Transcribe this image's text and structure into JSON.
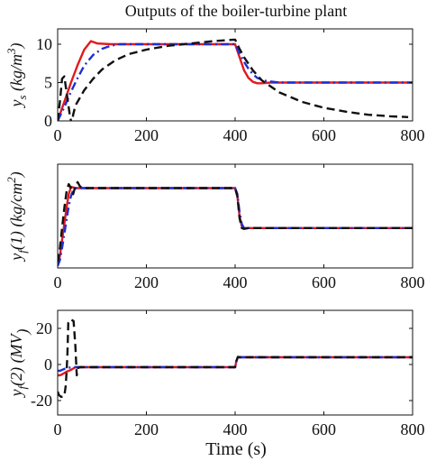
{
  "figure": {
    "title": "Outputs of the boiler-turbine plant",
    "xlabel": "Time (s)"
  },
  "chart_data": [
    {
      "type": "line",
      "ylabel": "y_s (kg/m^3)",
      "ylabel_parts": [
        "y",
        "s",
        " (",
        "kg/m",
        "3",
        ")"
      ],
      "xlim": [
        0,
        800
      ],
      "ylim": [
        0,
        12
      ],
      "xticks": [
        0,
        200,
        400,
        600,
        800
      ],
      "yticks": [
        0,
        5,
        10
      ],
      "grid": false,
      "series": [
        {
          "color": "#e3191c",
          "dash": "solid",
          "x": [
            0,
            15,
            30,
            45,
            60,
            75,
            90,
            120,
            200,
            300,
            400,
            410,
            420,
            430,
            440,
            450,
            460,
            480,
            500,
            600,
            800
          ],
          "y": [
            0,
            2.5,
            5.0,
            7.3,
            9.3,
            10.4,
            10.1,
            10.0,
            10.0,
            10.0,
            10.0,
            8.3,
            6.6,
            5.6,
            5.1,
            4.9,
            4.9,
            5.0,
            5.0,
            5.0,
            5.0
          ]
        },
        {
          "color": "#1f2fd4",
          "dash": "dashdot",
          "x": [
            0,
            15,
            30,
            45,
            60,
            80,
            100,
            120,
            140,
            200,
            300,
            400,
            410,
            420,
            430,
            440,
            450,
            470,
            500,
            600,
            800
          ],
          "y": [
            0,
            1.8,
            3.8,
            5.6,
            7.2,
            8.6,
            9.4,
            9.8,
            10.0,
            10.0,
            10.0,
            10.0,
            8.8,
            7.7,
            6.8,
            6.1,
            5.6,
            5.2,
            5.0,
            5.0,
            5.0
          ]
        },
        {
          "color": "#111111",
          "dash": "dashed",
          "x": [
            0,
            5,
            10,
            15,
            22,
            28,
            32,
            35,
            40,
            50,
            60,
            80,
            100,
            130,
            160,
            200,
            250,
            300,
            350,
            400,
            410,
            420,
            440,
            460,
            500,
            550,
            600,
            650,
            700,
            750,
            790
          ],
          "y": [
            0,
            2.5,
            5.5,
            5.8,
            3.0,
            0.5,
            -0.4,
            0.8,
            2.0,
            3.0,
            4.0,
            5.5,
            6.7,
            7.9,
            8.7,
            9.3,
            9.8,
            10.1,
            10.4,
            10.6,
            9.4,
            8.3,
            6.6,
            5.3,
            3.7,
            2.5,
            1.7,
            1.2,
            0.8,
            0.6,
            0.5
          ]
        }
      ]
    },
    {
      "type": "line",
      "ylabel": "y_f(1) (kg/cm^2)",
      "ylabel_parts": [
        "y",
        "f",
        "(1) (",
        "kg/cm",
        "2",
        ")"
      ],
      "xlim": [
        0,
        800
      ],
      "ylim": [
        0,
        2.6
      ],
      "xticks": [
        0,
        200,
        400,
        600,
        800
      ],
      "yticks": [],
      "grid": false,
      "series": [
        {
          "color": "#e3191c",
          "dash": "solid",
          "x": [
            0,
            5,
            10,
            15,
            20,
            25,
            30,
            35,
            40,
            50,
            400,
            405,
            410,
            415,
            420,
            800
          ],
          "y": [
            0.1,
            0.3,
            0.7,
            1.1,
            1.5,
            1.85,
            2.03,
            2.02,
            2.0,
            2.0,
            2.0,
            1.8,
            1.3,
            1.05,
            1.0,
            1.0
          ]
        },
        {
          "color": "#1f2fd4",
          "dash": "dashdot",
          "x": [
            0,
            5,
            10,
            15,
            20,
            25,
            30,
            35,
            40,
            45,
            50,
            400,
            405,
            410,
            415,
            420,
            800
          ],
          "y": [
            0.05,
            0.2,
            0.5,
            0.85,
            1.2,
            1.55,
            1.8,
            1.95,
            2.0,
            2.0,
            2.0,
            2.0,
            1.85,
            1.4,
            1.1,
            1.0,
            1.0
          ]
        },
        {
          "color": "#111111",
          "dash": "dashed",
          "x": [
            0,
            5,
            10,
            15,
            20,
            25,
            30,
            35,
            40,
            45,
            50,
            55,
            60,
            400,
            405,
            410,
            415,
            420,
            430,
            800
          ],
          "y": [
            0.15,
            0.5,
            1.0,
            1.5,
            1.9,
            2.1,
            2.0,
            1.85,
            2.05,
            2.15,
            2.05,
            2.0,
            2.0,
            2.0,
            1.8,
            1.25,
            1.0,
            0.98,
            1.0,
            1.0
          ]
        }
      ]
    },
    {
      "type": "line",
      "ylabel": "y_f(2) (MV)",
      "ylabel_parts": [
        "y",
        "f",
        "(2) (",
        "MV",
        "",
        ")"
      ],
      "xlim": [
        0,
        800
      ],
      "ylim": [
        -28,
        30
      ],
      "xticks": [
        0,
        200,
        400,
        600,
        800
      ],
      "yticks": [
        -20,
        0,
        20
      ],
      "grid": false,
      "series": [
        {
          "color": "#e3191c",
          "dash": "solid",
          "x": [
            0,
            5,
            10,
            20,
            30,
            40,
            400,
            403,
            406,
            410,
            800
          ],
          "y": [
            -6,
            -6,
            -5.5,
            -4,
            -3,
            -1.5,
            -1.5,
            2.0,
            4.0,
            4.0,
            4.0
          ]
        },
        {
          "color": "#1f2fd4",
          "dash": "dashdot",
          "x": [
            0,
            5,
            10,
            20,
            30,
            40,
            400,
            403,
            406,
            410,
            800
          ],
          "y": [
            -3.5,
            -3.5,
            -3.0,
            -2.0,
            -1.6,
            -1.5,
            -1.5,
            2.5,
            4.0,
            4.0,
            4.0
          ]
        },
        {
          "color": "#111111",
          "dash": "dashed",
          "x": [
            0,
            3,
            8,
            15,
            18,
            20,
            22,
            24,
            30,
            36,
            40,
            43,
            46,
            50,
            400,
            403,
            406,
            410,
            800
          ],
          "y": [
            -15,
            -17,
            -18,
            -17.5,
            -12,
            -5,
            5,
            23,
            25,
            24,
            10,
            -6,
            -2,
            -1.5,
            -1.5,
            2.0,
            4.2,
            4.0,
            4.0
          ]
        }
      ]
    }
  ]
}
